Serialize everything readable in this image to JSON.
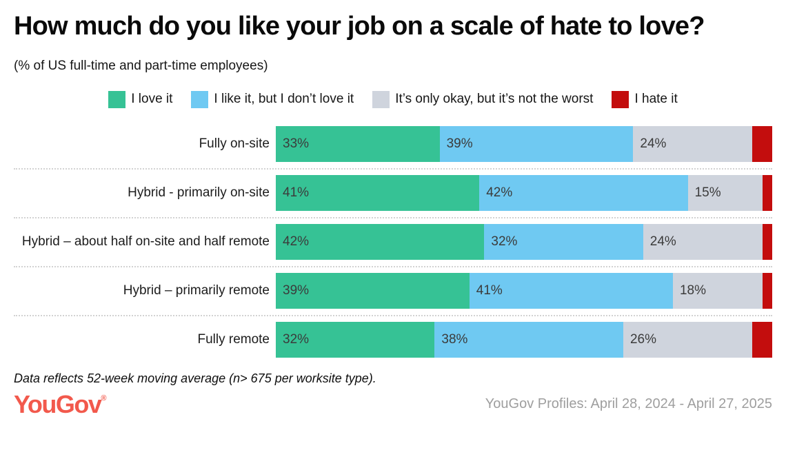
{
  "header": {
    "title": "How much do you like your job on a scale of hate to love?",
    "subtitle": "(% of US full-time and part-time employees)"
  },
  "chart_data": {
    "type": "bar",
    "orientation": "horizontal",
    "stacked": true,
    "value_suffix": "%",
    "xlim": [
      0,
      100
    ],
    "grid": "dotted-row-separators",
    "legend_position": "top-center",
    "categories": [
      "Fully on-site",
      "Hybrid - primarily on-site",
      "Hybrid – about half on-site and half remote",
      "Hybrid – primarily remote",
      "Fully remote"
    ],
    "series": [
      {
        "name": "I love it",
        "color": "#36c295",
        "show_labels": true,
        "values": [
          33,
          41,
          42,
          39,
          32
        ]
      },
      {
        "name": "I like it, but I don’t love it",
        "color": "#6fc9f2",
        "show_labels": true,
        "values": [
          39,
          42,
          32,
          41,
          38
        ]
      },
      {
        "name": "It’s only okay, but it’s not the worst",
        "color": "#cfd4dd",
        "show_labels": true,
        "values": [
          24,
          15,
          24,
          18,
          26
        ]
      },
      {
        "name": "I hate it",
        "color": "#c30d0d",
        "show_labels": false,
        "values": [
          4,
          2,
          2,
          2,
          4
        ]
      }
    ],
    "label_color": "#3b3b3b"
  },
  "footer": {
    "note": "Data reflects 52-week moving average (n> 675 per worksite type).",
    "logo_text": "YouGov",
    "logo_mark": "®",
    "logo_color": "#f2594c",
    "source": "YouGov Profiles: April 28, 2024 - April 27, 2025"
  }
}
